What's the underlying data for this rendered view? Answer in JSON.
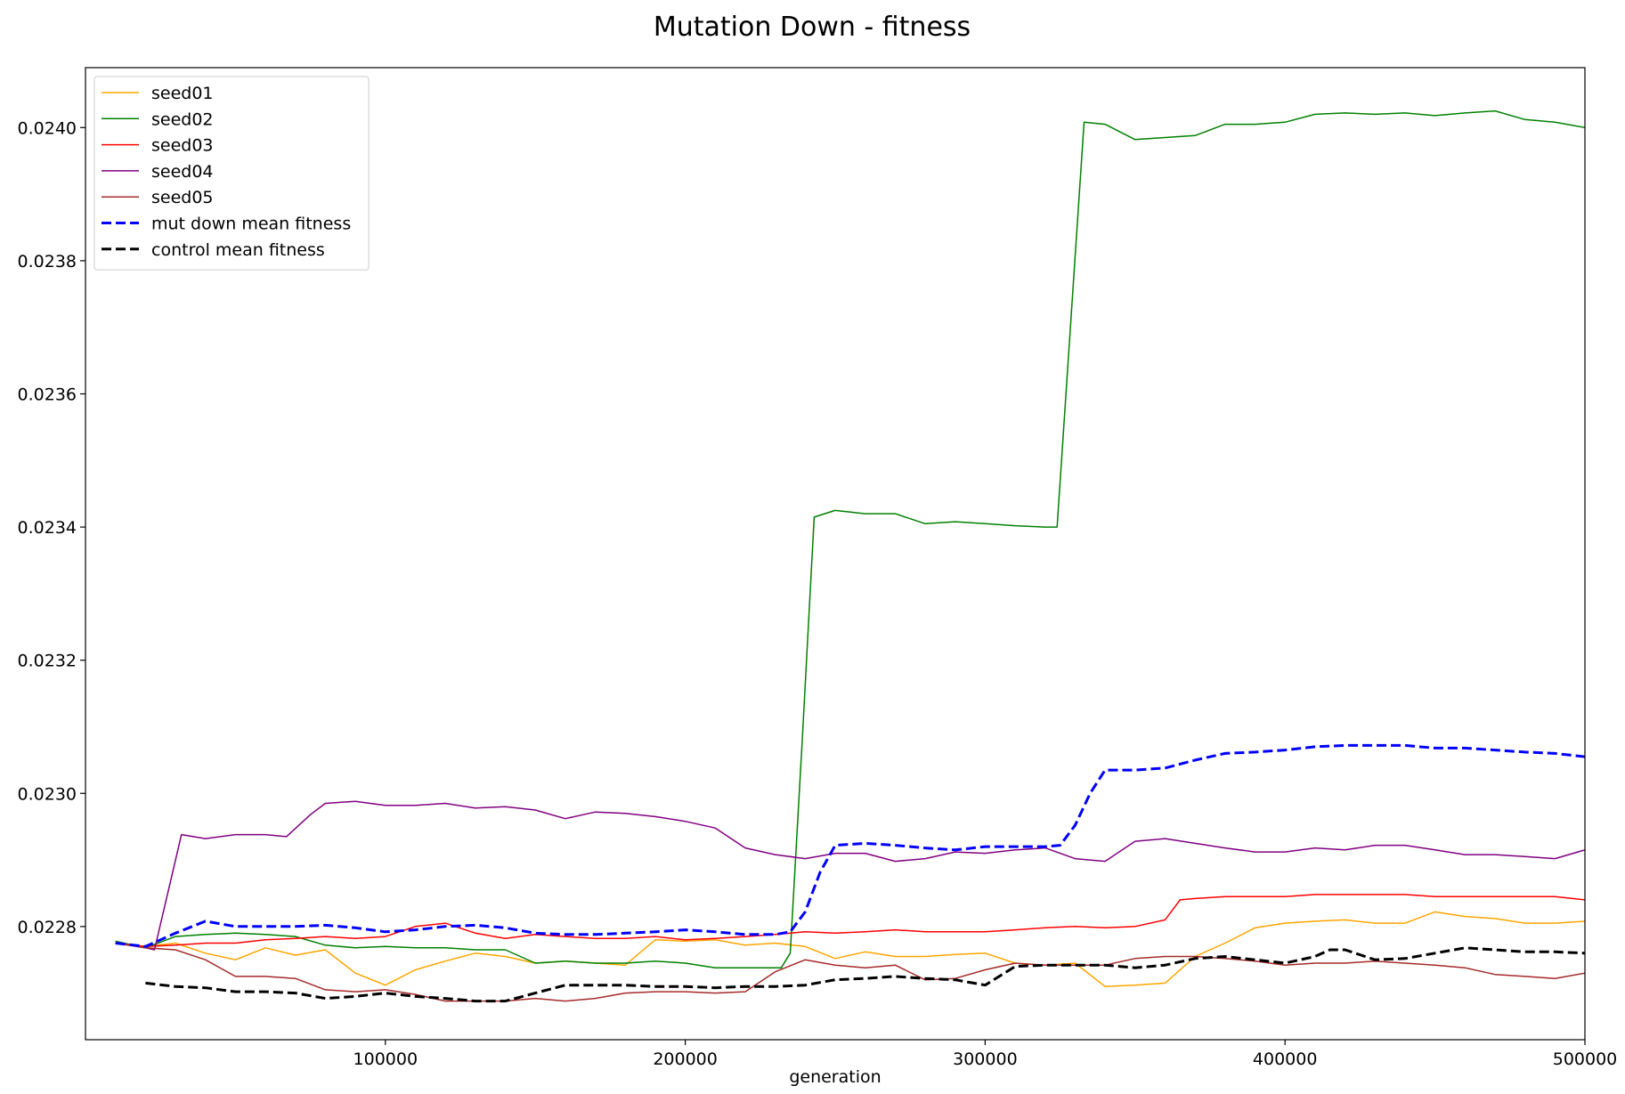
{
  "chart_data": {
    "type": "line",
    "title": "Mutation Down - fitness",
    "xlabel": "generation",
    "ylabel": "",
    "xlim": [
      0,
      500000
    ],
    "ylim": [
      0.02263,
      0.02409
    ],
    "xticks": [
      100000,
      200000,
      300000,
      400000,
      500000
    ],
    "xtick_labels": [
      "100000",
      "200000",
      "300000",
      "400000",
      "500000"
    ],
    "yticks": [
      0.0228,
      0.023,
      0.0232,
      0.0234,
      0.0236,
      0.0238,
      0.024
    ],
    "ytick_labels": [
      "0.0228",
      "0.0230",
      "0.0232",
      "0.0234",
      "0.0236",
      "0.0238",
      "0.0240"
    ],
    "grid": false,
    "legend_position": "top-left",
    "series": [
      {
        "name": "seed01",
        "color": "#FFA500",
        "style": "solid",
        "width": 1.5,
        "x": [
          10000,
          20000,
          30000,
          40000,
          50000,
          60000,
          70000,
          80000,
          90000,
          100000,
          110000,
          120000,
          130000,
          140000,
          150000,
          160000,
          170000,
          180000,
          190000,
          200000,
          210000,
          220000,
          230000,
          240000,
          250000,
          260000,
          270000,
          280000,
          290000,
          300000,
          310000,
          320000,
          330000,
          340000,
          350000,
          360000,
          370000,
          380000,
          390000,
          400000,
          410000,
          420000,
          430000,
          440000,
          450000,
          460000,
          470000,
          480000,
          490000,
          500000
        ],
        "y": [
          0.022775,
          0.02277,
          0.022775,
          0.02276,
          0.02275,
          0.022768,
          0.022757,
          0.022765,
          0.02273,
          0.022712,
          0.022735,
          0.022748,
          0.02276,
          0.022755,
          0.022745,
          0.022748,
          0.022745,
          0.022742,
          0.02278,
          0.022778,
          0.02278,
          0.022772,
          0.022775,
          0.02277,
          0.022752,
          0.022762,
          0.022755,
          0.022755,
          0.022758,
          0.02276,
          0.022745,
          0.022742,
          0.022745,
          0.02271,
          0.022712,
          0.022715,
          0.022755,
          0.022775,
          0.022798,
          0.022805,
          0.022808,
          0.02281,
          0.022805,
          0.022805,
          0.022822,
          0.022815,
          0.022812,
          0.022805,
          0.022805,
          0.022808
        ]
      },
      {
        "name": "seed02",
        "color": "#008000",
        "style": "solid",
        "width": 1.5,
        "x": [
          10000,
          20000,
          30000,
          40000,
          50000,
          60000,
          70000,
          80000,
          90000,
          100000,
          110000,
          120000,
          130000,
          140000,
          150000,
          160000,
          170000,
          180000,
          190000,
          200000,
          210000,
          220000,
          232000,
          235000,
          239000,
          243000,
          250000,
          260000,
          270000,
          280000,
          290000,
          300000,
          310000,
          320000,
          324000,
          333000,
          340000,
          350000,
          360000,
          370000,
          380000,
          390000,
          400000,
          410000,
          420000,
          430000,
          440000,
          450000,
          460000,
          470000,
          480000,
          490000,
          500000
        ],
        "y": [
          0.022778,
          0.022768,
          0.022785,
          0.022788,
          0.02279,
          0.022788,
          0.022785,
          0.022772,
          0.022768,
          0.02277,
          0.022768,
          0.022768,
          0.022765,
          0.022765,
          0.022745,
          0.022748,
          0.022745,
          0.022745,
          0.022748,
          0.022745,
          0.022738,
          0.022738,
          0.022738,
          0.02276,
          0.02308,
          0.023415,
          0.023425,
          0.02342,
          0.02342,
          0.023405,
          0.023408,
          0.023405,
          0.023402,
          0.0234,
          0.0234,
          0.024008,
          0.024005,
          0.023982,
          0.023985,
          0.023988,
          0.024005,
          0.024005,
          0.024008,
          0.02402,
          0.024022,
          0.02402,
          0.024022,
          0.024018,
          0.024022,
          0.024025,
          0.024012,
          0.024008,
          0.024
        ],
        "x_note": ""
      },
      {
        "name": "seed03",
        "color": "#FF0000",
        "style": "solid",
        "width": 1.5,
        "x": [
          10000,
          20000,
          30000,
          40000,
          50000,
          60000,
          70000,
          80000,
          90000,
          100000,
          110000,
          120000,
          130000,
          140000,
          150000,
          160000,
          170000,
          180000,
          190000,
          200000,
          210000,
          220000,
          230000,
          240000,
          250000,
          260000,
          270000,
          280000,
          290000,
          300000,
          310000,
          320000,
          330000,
          340000,
          350000,
          360000,
          365000,
          370000,
          380000,
          390000,
          400000,
          410000,
          420000,
          430000,
          440000,
          450000,
          460000,
          470000,
          480000,
          490000,
          500000
        ],
        "y": [
          0.022775,
          0.02277,
          0.022772,
          0.022775,
          0.022775,
          0.02278,
          0.022782,
          0.022785,
          0.022782,
          0.022785,
          0.0228,
          0.022805,
          0.02279,
          0.022782,
          0.022788,
          0.022785,
          0.022782,
          0.022782,
          0.022785,
          0.02278,
          0.022782,
          0.022785,
          0.022788,
          0.022792,
          0.02279,
          0.022792,
          0.022795,
          0.022792,
          0.022792,
          0.022792,
          0.022795,
          0.022798,
          0.0228,
          0.022798,
          0.0228,
          0.02281,
          0.02284,
          0.022842,
          0.022845,
          0.022845,
          0.022845,
          0.022848,
          0.022848,
          0.022848,
          0.022848,
          0.022845,
          0.022845,
          0.022845,
          0.022845,
          0.022845,
          0.02284
        ]
      },
      {
        "name": "seed04",
        "color": "#800080",
        "style": "solid",
        "width": 1.5,
        "x": [
          10000,
          20000,
          23000,
          32000,
          40000,
          50000,
          60000,
          67000,
          75000,
          80000,
          90000,
          100000,
          110000,
          120000,
          130000,
          140000,
          150000,
          160000,
          170000,
          180000,
          190000,
          200000,
          210000,
          220000,
          230000,
          240000,
          250000,
          260000,
          270000,
          280000,
          290000,
          300000,
          310000,
          320000,
          330000,
          340000,
          350000,
          360000,
          370000,
          380000,
          390000,
          400000,
          410000,
          420000,
          430000,
          440000,
          450000,
          460000,
          470000,
          480000,
          490000,
          500000
        ],
        "y": [
          0.022775,
          0.022768,
          0.022765,
          0.022938,
          0.022932,
          0.022938,
          0.022938,
          0.022935,
          0.022968,
          0.022985,
          0.022988,
          0.022982,
          0.022982,
          0.022985,
          0.022978,
          0.02298,
          0.022975,
          0.022962,
          0.022972,
          0.02297,
          0.022965,
          0.022958,
          0.022948,
          0.022918,
          0.022908,
          0.022902,
          0.02291,
          0.02291,
          0.022898,
          0.022902,
          0.022912,
          0.02291,
          0.022915,
          0.022918,
          0.022902,
          0.022898,
          0.022928,
          0.022932,
          0.022925,
          0.022918,
          0.022912,
          0.022912,
          0.022918,
          0.022915,
          0.022922,
          0.022922,
          0.022915,
          0.022908,
          0.022908,
          0.022905,
          0.022902,
          0.022915
        ]
      },
      {
        "name": "seed05",
        "color": "#A52A2A",
        "style": "solid",
        "width": 1.5,
        "x": [
          10000,
          20000,
          30000,
          40000,
          50000,
          60000,
          70000,
          80000,
          90000,
          100000,
          110000,
          120000,
          130000,
          140000,
          150000,
          160000,
          170000,
          180000,
          190000,
          200000,
          210000,
          220000,
          230000,
          240000,
          250000,
          260000,
          270000,
          280000,
          290000,
          300000,
          310000,
          320000,
          330000,
          340000,
          350000,
          360000,
          370000,
          380000,
          390000,
          400000,
          410000,
          420000,
          430000,
          440000,
          450000,
          460000,
          470000,
          480000,
          490000,
          500000
        ],
        "y": [
          0.022775,
          0.022768,
          0.022765,
          0.02275,
          0.022725,
          0.022725,
          0.022722,
          0.022705,
          0.022702,
          0.022705,
          0.022698,
          0.022688,
          0.022688,
          0.022688,
          0.022692,
          0.022688,
          0.022692,
          0.0227,
          0.022702,
          0.022702,
          0.0227,
          0.022702,
          0.022732,
          0.02275,
          0.022742,
          0.022738,
          0.022742,
          0.02272,
          0.022722,
          0.022735,
          0.022745,
          0.022742,
          0.022742,
          0.022742,
          0.022752,
          0.022755,
          0.022755,
          0.022752,
          0.022748,
          0.022742,
          0.022745,
          0.022745,
          0.022748,
          0.022745,
          0.022742,
          0.022738,
          0.022728,
          0.022725,
          0.022722,
          0.02273
        ]
      },
      {
        "name": "mut down mean fitness",
        "color": "#0000FF",
        "style": "dashed",
        "width": 3,
        "x": [
          10000,
          20000,
          30000,
          40000,
          50000,
          60000,
          70000,
          80000,
          90000,
          100000,
          110000,
          120000,
          130000,
          140000,
          150000,
          160000,
          170000,
          180000,
          190000,
          200000,
          210000,
          220000,
          230000,
          235000,
          240000,
          245000,
          250000,
          260000,
          270000,
          280000,
          290000,
          300000,
          310000,
          320000,
          325000,
          330000,
          335000,
          340000,
          350000,
          360000,
          370000,
          380000,
          390000,
          400000,
          410000,
          420000,
          430000,
          440000,
          450000,
          460000,
          470000,
          480000,
          490000,
          500000
        ],
        "y": [
          0.022775,
          0.02277,
          0.02279,
          0.022808,
          0.0228,
          0.0228,
          0.0228,
          0.022802,
          0.022798,
          0.022792,
          0.022795,
          0.0228,
          0.022802,
          0.022798,
          0.02279,
          0.022788,
          0.022788,
          0.02279,
          0.022792,
          0.022795,
          0.022792,
          0.022788,
          0.022788,
          0.022792,
          0.022822,
          0.022882,
          0.022922,
          0.022925,
          0.022922,
          0.022918,
          0.022915,
          0.02292,
          0.02292,
          0.02292,
          0.022922,
          0.022952,
          0.023,
          0.023035,
          0.023035,
          0.023038,
          0.02305,
          0.02306,
          0.023062,
          0.023065,
          0.02307,
          0.023072,
          0.023072,
          0.023072,
          0.023068,
          0.023068,
          0.023065,
          0.023062,
          0.02306,
          0.023055
        ]
      },
      {
        "name": "control mean fitness",
        "color": "#000000",
        "style": "dashed",
        "width": 3,
        "x": [
          20000,
          30000,
          40000,
          50000,
          60000,
          70000,
          80000,
          90000,
          100000,
          110000,
          120000,
          130000,
          140000,
          150000,
          160000,
          170000,
          180000,
          190000,
          200000,
          210000,
          220000,
          230000,
          240000,
          250000,
          260000,
          270000,
          280000,
          290000,
          300000,
          310000,
          320000,
          330000,
          340000,
          350000,
          360000,
          370000,
          380000,
          390000,
          400000,
          410000,
          415000,
          420000,
          430000,
          440000,
          450000,
          460000,
          470000,
          480000,
          490000,
          500000
        ],
        "y": [
          0.022715,
          0.02271,
          0.022708,
          0.022702,
          0.022702,
          0.0227,
          0.022692,
          0.022695,
          0.0227,
          0.022695,
          0.022692,
          0.022688,
          0.022688,
          0.0227,
          0.022712,
          0.022712,
          0.022712,
          0.02271,
          0.02271,
          0.022708,
          0.02271,
          0.02271,
          0.022712,
          0.02272,
          0.022722,
          0.022725,
          0.022722,
          0.02272,
          0.022712,
          0.02274,
          0.022742,
          0.022742,
          0.022742,
          0.022738,
          0.022742,
          0.022752,
          0.022755,
          0.02275,
          0.022745,
          0.022755,
          0.022765,
          0.022765,
          0.02275,
          0.022752,
          0.02276,
          0.022768,
          0.022765,
          0.022762,
          0.022762,
          0.02276
        ]
      }
    ]
  }
}
